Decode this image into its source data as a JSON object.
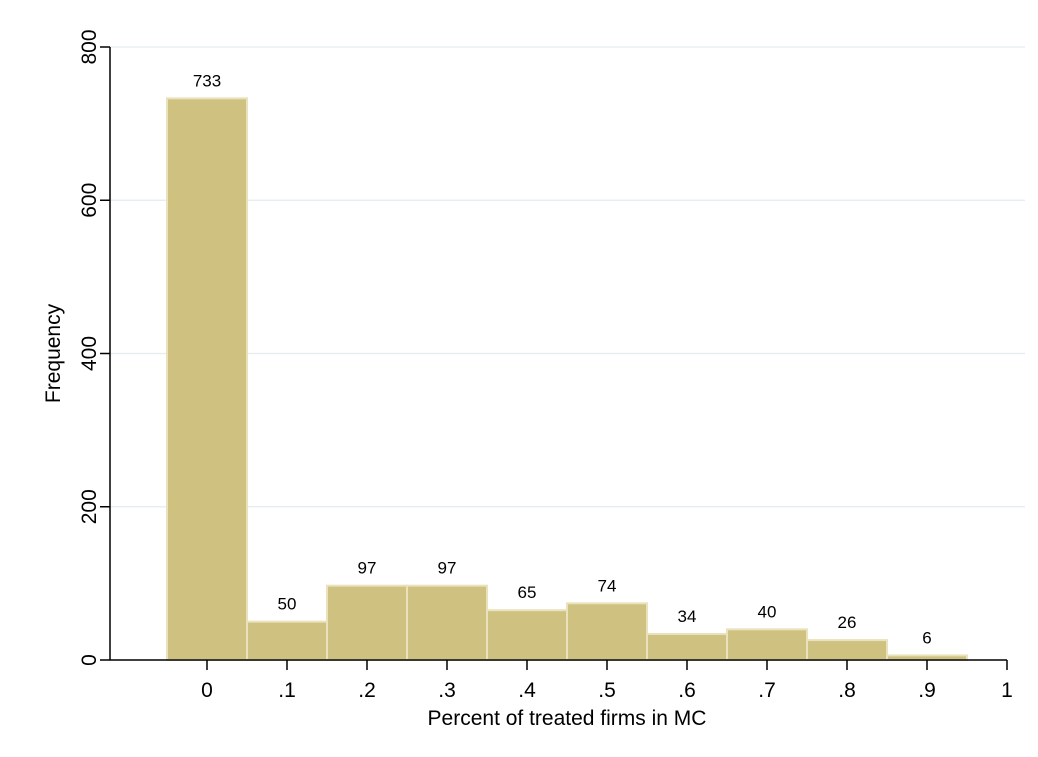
{
  "chart_data": {
    "type": "bar",
    "histogram": true,
    "xlabel": "Percent of treated firms in MC",
    "ylabel": "Frequency",
    "bin_width": 0.1,
    "bin_centers": [
      0,
      0.1,
      0.2,
      0.3,
      0.4,
      0.5,
      0.6,
      0.7,
      0.8,
      0.9
    ],
    "values": [
      733,
      50,
      97,
      97,
      65,
      74,
      34,
      40,
      26,
      6
    ],
    "data_labels": [
      "733",
      "50",
      "97",
      "97",
      "65",
      "74",
      "34",
      "40",
      "26",
      "6"
    ],
    "xlim": [
      -0.1,
      1.0
    ],
    "ylim": [
      0,
      800
    ],
    "x_ticks": [
      0,
      0.1,
      0.2,
      0.3,
      0.4,
      0.5,
      0.6,
      0.7,
      0.8,
      0.9,
      1.0
    ],
    "x_tick_labels": [
      "0",
      ".1",
      ".2",
      ".3",
      ".4",
      ".5",
      ".6",
      ".7",
      ".8",
      ".9",
      "1"
    ],
    "y_ticks": [
      0,
      200,
      400,
      600,
      800
    ],
    "y_tick_labels": [
      "0",
      "200",
      "400",
      "600",
      "800"
    ],
    "grid": "horizontal",
    "colors": {
      "bar_fill": "#cfc180",
      "bar_edge": "#e9e2bd",
      "grid": "#e3ecef",
      "axis": "#000000"
    }
  }
}
